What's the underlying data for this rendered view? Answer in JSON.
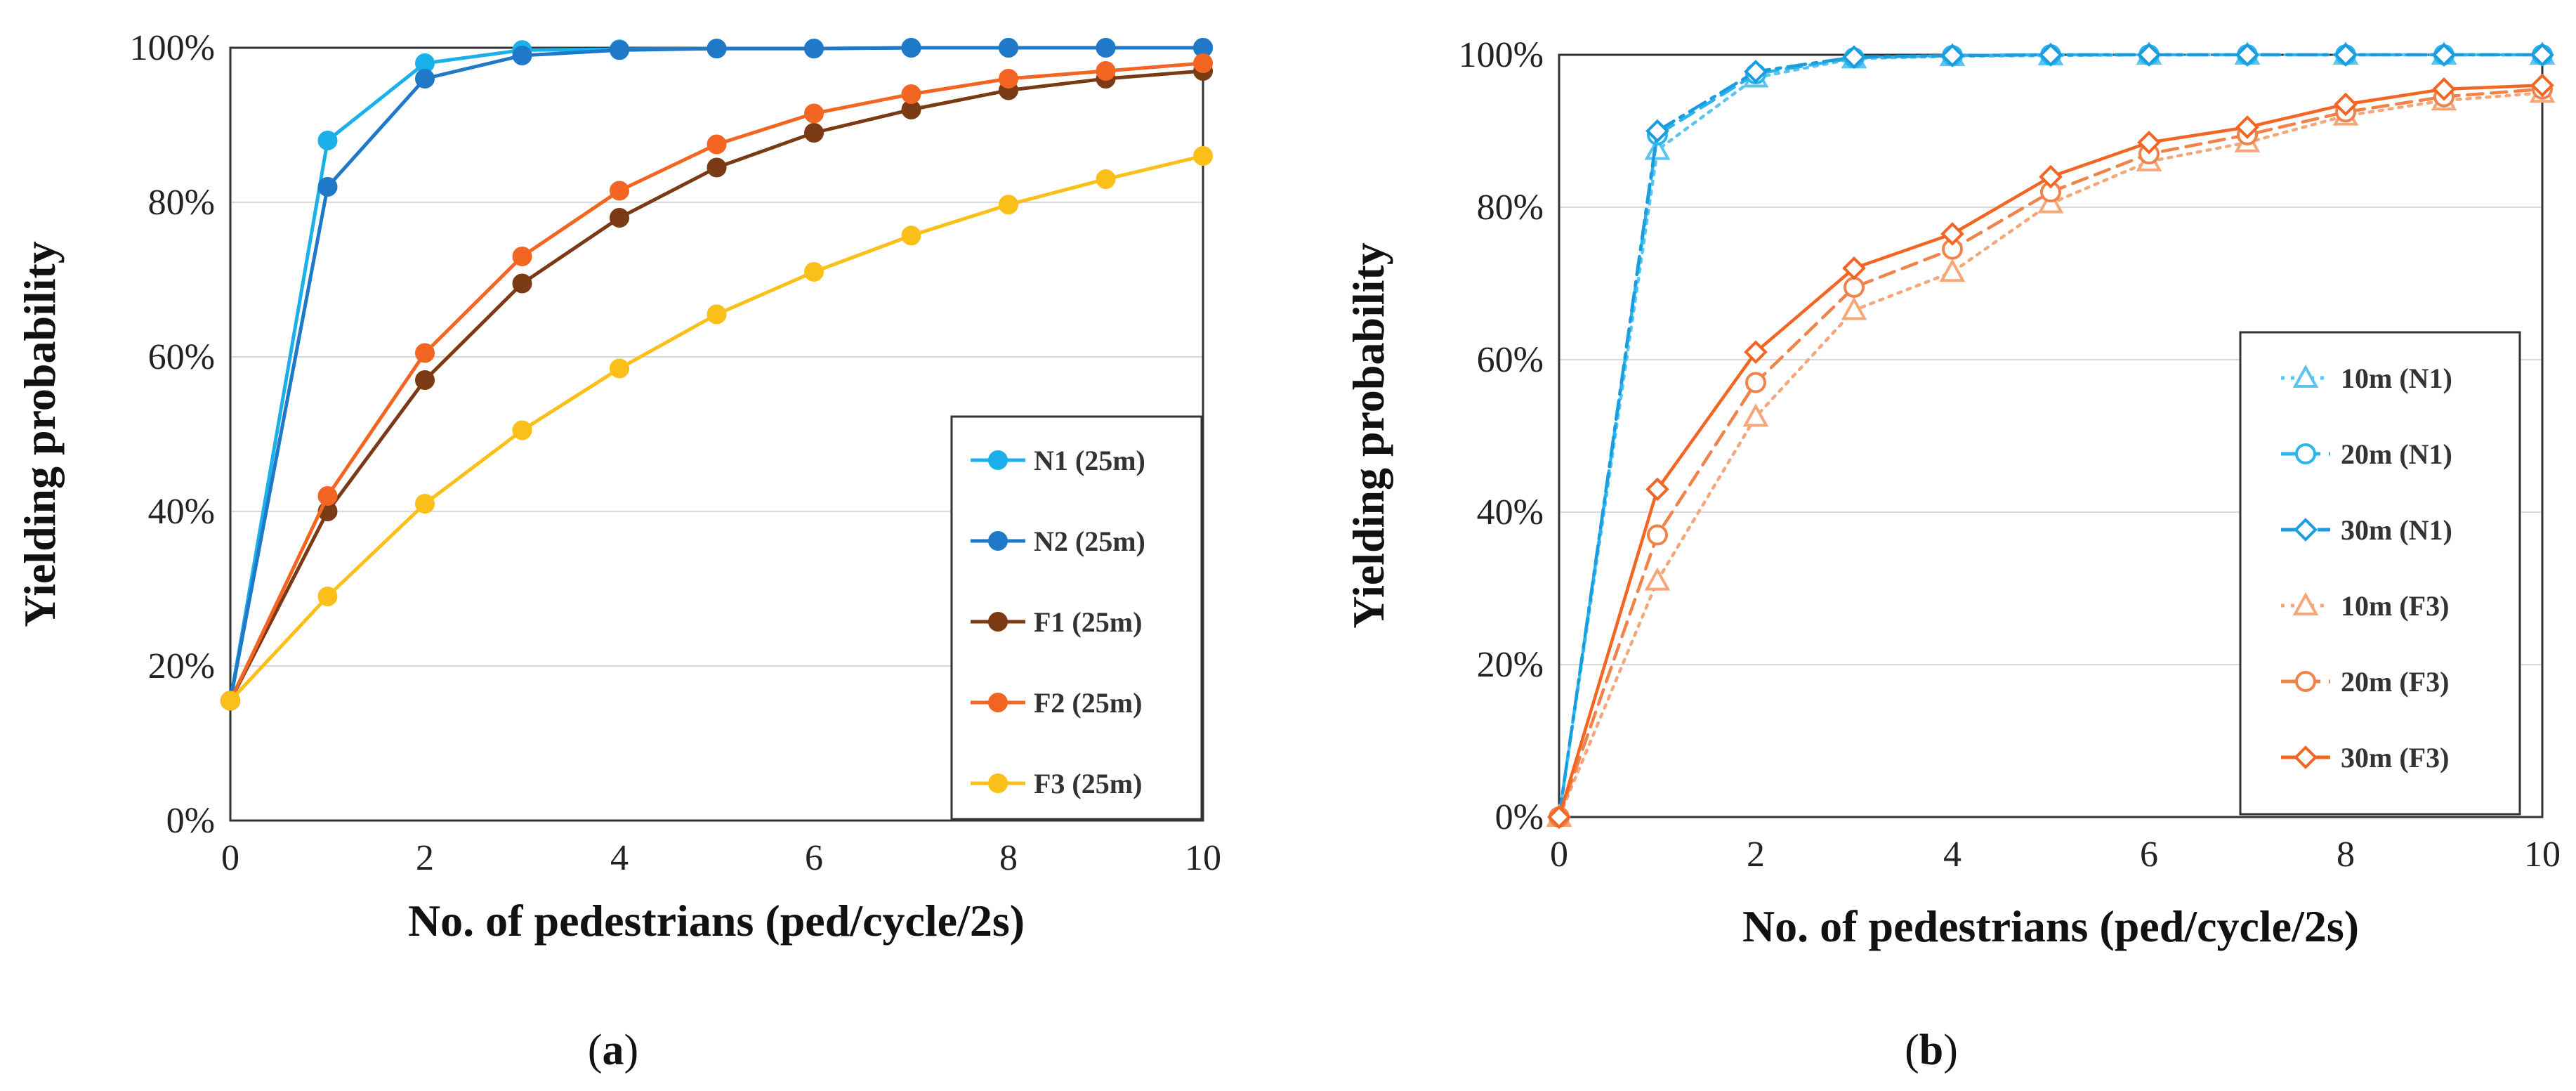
{
  "charts": [
    {
      "id": "a",
      "type": "line",
      "panel_label": {
        "open": "(",
        "letter": "a",
        "close": ")"
      },
      "xlabel": "No. of pedestrians (ped/cycle/2s)",
      "ylabel": "Yielding probability",
      "xlim": [
        0,
        10
      ],
      "ylim": [
        0,
        1
      ],
      "x_ticks": [
        0,
        2,
        4,
        6,
        8,
        10
      ],
      "y_ticks": [
        0,
        0.2,
        0.4,
        0.6,
        0.8,
        1.0
      ],
      "y_tick_labels": [
        "0%",
        "20%",
        "40%",
        "60%",
        "80%",
        "100%"
      ],
      "x_tick_labels": [
        "0",
        "2",
        "4",
        "6",
        "8",
        "10"
      ],
      "grid": true,
      "legend_position": "right",
      "x": [
        0,
        1,
        2,
        3,
        4,
        5,
        6,
        7,
        8,
        9,
        10
      ],
      "series": [
        {
          "name": "N1 (25m)",
          "color": "#1cb0ea",
          "marker": "filled-circle",
          "dash": "solid",
          "values": [
            0.155,
            0.88,
            0.98,
            0.997,
            0.998,
            0.999,
            0.999,
            1.0,
            1.0,
            1.0,
            1.0
          ]
        },
        {
          "name": "N2 (25m)",
          "color": "#1f78c8",
          "marker": "filled-circle",
          "dash": "solid",
          "values": [
            0.155,
            0.82,
            0.96,
            0.99,
            0.997,
            0.999,
            0.999,
            1.0,
            1.0,
            1.0,
            1.0
          ]
        },
        {
          "name": "F1 (25m)",
          "color": "#7a3a14",
          "marker": "filled-circle",
          "dash": "solid",
          "values": [
            0.155,
            0.4,
            0.57,
            0.695,
            0.78,
            0.845,
            0.89,
            0.92,
            0.945,
            0.96,
            0.97
          ]
        },
        {
          "name": "F2 (25m)",
          "color": "#f26522",
          "marker": "filled-circle",
          "dash": "solid",
          "values": [
            0.155,
            0.42,
            0.605,
            0.73,
            0.815,
            0.875,
            0.915,
            0.94,
            0.96,
            0.97,
            0.98
          ]
        },
        {
          "name": "F3 (25m)",
          "color": "#fbbf1a",
          "marker": "filled-circle",
          "dash": "solid",
          "values": [
            0.155,
            0.29,
            0.41,
            0.505,
            0.585,
            0.655,
            0.71,
            0.757,
            0.797,
            0.83,
            0.86
          ]
        }
      ]
    },
    {
      "id": "b",
      "type": "line",
      "panel_label": {
        "open": "(",
        "letter": "b",
        "close": ")"
      },
      "xlabel": "No. of pedestrians (ped/cycle/2s)",
      "ylabel": "Yielding probability",
      "xlim": [
        0,
        10
      ],
      "ylim": [
        0,
        1
      ],
      "x_ticks": [
        0,
        2,
        4,
        6,
        8,
        10
      ],
      "y_ticks": [
        0,
        0.2,
        0.4,
        0.6,
        0.8,
        1.0
      ],
      "y_tick_labels": [
        "0%",
        "20%",
        "40%",
        "60%",
        "80%",
        "100%"
      ],
      "x_tick_labels": [
        "0",
        "2",
        "4",
        "6",
        "8",
        "10"
      ],
      "grid": true,
      "legend_position": "right",
      "x": [
        0,
        1,
        2,
        3,
        4,
        5,
        6,
        7,
        8,
        9,
        10
      ],
      "series": [
        {
          "name": "10m (N1)",
          "color": "#5cc4f0",
          "marker": "open-triangle",
          "dash": "dot",
          "values": [
            0.0,
            0.875,
            0.97,
            0.995,
            0.998,
            0.999,
            1.0,
            1.0,
            1.0,
            1.0,
            1.0
          ]
        },
        {
          "name": "20m (N1)",
          "color": "#2eb4ec",
          "marker": "open-circle",
          "dash": "dash",
          "values": [
            0.0,
            0.895,
            0.975,
            0.996,
            0.999,
            1.0,
            1.0,
            1.0,
            1.0,
            1.0,
            1.0
          ]
        },
        {
          "name": "30m (N1)",
          "color": "#1a9ddf",
          "marker": "open-diamond",
          "dash": "dashdot",
          "values": [
            0.0,
            0.9,
            0.978,
            0.997,
            0.999,
            1.0,
            1.0,
            1.0,
            1.0,
            1.0,
            1.0
          ]
        },
        {
          "name": "10m (F3)",
          "color": "#f5a77a",
          "marker": "open-triangle",
          "dash": "dot",
          "values": [
            0.0,
            0.31,
            0.525,
            0.665,
            0.715,
            0.805,
            0.86,
            0.885,
            0.92,
            0.94,
            0.95
          ]
        },
        {
          "name": "20m (F3)",
          "color": "#f0834a",
          "marker": "open-circle",
          "dash": "dash",
          "values": [
            0.0,
            0.37,
            0.57,
            0.695,
            0.745,
            0.82,
            0.87,
            0.895,
            0.925,
            0.945,
            0.955
          ]
        },
        {
          "name": "30m (F3)",
          "color": "#f26522",
          "marker": "open-diamond",
          "dash": "solid",
          "values": [
            0.0,
            0.43,
            0.61,
            0.72,
            0.765,
            0.84,
            0.885,
            0.905,
            0.935,
            0.955,
            0.96
          ]
        }
      ]
    }
  ],
  "chart_data": [
    {
      "type": "line",
      "title": "(a)",
      "xlabel": "No. of pedestrians (ped/cycle/2s)",
      "ylabel": "Yielding probability",
      "x": [
        0,
        1,
        2,
        3,
        4,
        5,
        6,
        7,
        8,
        9,
        10
      ],
      "xlim": [
        0,
        10
      ],
      "ylim": [
        0,
        1
      ],
      "series": [
        {
          "name": "N1 (25m)",
          "values": [
            0.155,
            0.88,
            0.98,
            0.997,
            0.998,
            0.999,
            0.999,
            1.0,
            1.0,
            1.0,
            1.0
          ]
        },
        {
          "name": "N2 (25m)",
          "values": [
            0.155,
            0.82,
            0.96,
            0.99,
            0.997,
            0.999,
            0.999,
            1.0,
            1.0,
            1.0,
            1.0
          ]
        },
        {
          "name": "F1 (25m)",
          "values": [
            0.155,
            0.4,
            0.57,
            0.695,
            0.78,
            0.845,
            0.89,
            0.92,
            0.945,
            0.96,
            0.97
          ]
        },
        {
          "name": "F2 (25m)",
          "values": [
            0.155,
            0.42,
            0.605,
            0.73,
            0.815,
            0.875,
            0.915,
            0.94,
            0.96,
            0.97,
            0.98
          ]
        },
        {
          "name": "F3 (25m)",
          "values": [
            0.155,
            0.29,
            0.41,
            0.505,
            0.585,
            0.655,
            0.71,
            0.757,
            0.797,
            0.83,
            0.86
          ]
        }
      ]
    },
    {
      "type": "line",
      "title": "(b)",
      "xlabel": "No. of pedestrians (ped/cycle/2s)",
      "ylabel": "Yielding probability",
      "x": [
        0,
        1,
        2,
        3,
        4,
        5,
        6,
        7,
        8,
        9,
        10
      ],
      "xlim": [
        0,
        10
      ],
      "ylim": [
        0,
        1
      ],
      "series": [
        {
          "name": "10m (N1)",
          "values": [
            0.0,
            0.875,
            0.97,
            0.995,
            0.998,
            0.999,
            1.0,
            1.0,
            1.0,
            1.0,
            1.0
          ]
        },
        {
          "name": "20m (N1)",
          "values": [
            0.0,
            0.895,
            0.975,
            0.996,
            0.999,
            1.0,
            1.0,
            1.0,
            1.0,
            1.0,
            1.0
          ]
        },
        {
          "name": "30m (N1)",
          "values": [
            0.0,
            0.9,
            0.978,
            0.997,
            0.999,
            1.0,
            1.0,
            1.0,
            1.0,
            1.0,
            1.0
          ]
        },
        {
          "name": "10m (F3)",
          "values": [
            0.0,
            0.31,
            0.525,
            0.665,
            0.715,
            0.805,
            0.86,
            0.885,
            0.92,
            0.94,
            0.95
          ]
        },
        {
          "name": "20m (F3)",
          "values": [
            0.0,
            0.37,
            0.57,
            0.695,
            0.745,
            0.82,
            0.87,
            0.895,
            0.925,
            0.945,
            0.955
          ]
        },
        {
          "name": "30m (F3)",
          "values": [
            0.0,
            0.43,
            0.61,
            0.72,
            0.765,
            0.84,
            0.885,
            0.905,
            0.935,
            0.955,
            0.96
          ]
        }
      ]
    }
  ]
}
